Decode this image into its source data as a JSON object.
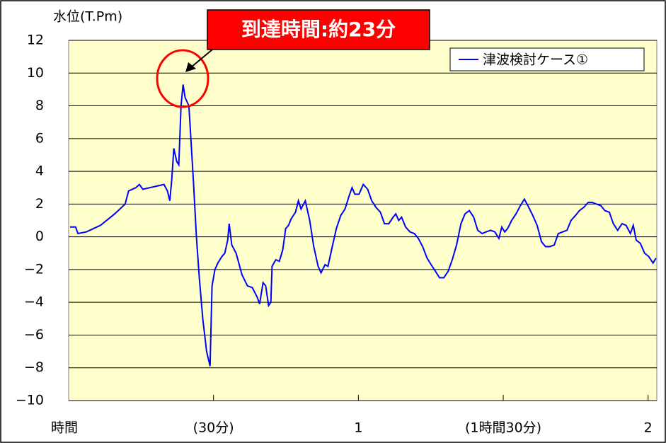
{
  "chart_data": {
    "type": "line",
    "ylabel": "水位(T.Pm)",
    "xlabel": "時間",
    "annotation": "到達時間:約23分",
    "legend": "upper right",
    "grid": true,
    "xlim": [
      0,
      2.03
    ],
    "ylim": [
      -10,
      12
    ],
    "xticks": [
      {
        "value": 0.5,
        "label": "(30分)"
      },
      1,
      {
        "value": 1.5,
        "label": "(1時間30分)"
      },
      2
    ],
    "yticks": [
      {
        "value": -10,
        "label": "−10"
      },
      {
        "value": -8,
        "label": "−8"
      },
      {
        "value": -6,
        "label": "−6"
      },
      {
        "value": -4,
        "label": "−4"
      },
      {
        "value": -2,
        "label": "−2"
      },
      0,
      2,
      4,
      6,
      8,
      10,
      12
    ],
    "x": [
      0.005,
      0.024,
      0.032,
      0.061,
      0.11,
      0.159,
      0.195,
      0.207,
      0.232,
      0.244,
      0.256,
      0.28,
      0.305,
      0.329,
      0.341,
      0.349,
      0.356,
      0.363,
      0.373,
      0.38,
      0.388,
      0.395,
      0.402,
      0.415,
      0.422,
      0.432,
      0.441,
      0.451,
      0.463,
      0.476,
      0.488,
      0.495,
      0.505,
      0.515,
      0.529,
      0.539,
      0.549,
      0.554,
      0.563,
      0.578,
      0.598,
      0.617,
      0.634,
      0.651,
      0.659,
      0.671,
      0.68,
      0.69,
      0.698,
      0.702,
      0.715,
      0.727,
      0.739,
      0.749,
      0.759,
      0.768,
      0.783,
      0.793,
      0.802,
      0.817,
      0.832,
      0.846,
      0.861,
      0.871,
      0.885,
      0.895,
      0.91,
      0.924,
      0.939,
      0.954,
      0.968,
      0.978,
      0.988,
      1.002,
      1.017,
      1.032,
      1.046,
      1.061,
      1.076,
      1.09,
      1.105,
      1.12,
      1.129,
      1.139,
      1.149,
      1.163,
      1.178,
      1.193,
      1.207,
      1.222,
      1.237,
      1.251,
      1.266,
      1.28,
      1.295,
      1.31,
      1.324,
      1.339,
      1.354,
      1.368,
      1.383,
      1.398,
      1.412,
      1.427,
      1.441,
      1.456,
      1.471,
      1.485,
      1.495,
      1.505,
      1.515,
      1.529,
      1.544,
      1.559,
      1.573,
      1.588,
      1.602,
      1.617,
      1.632,
      1.646,
      1.661,
      1.676,
      1.69,
      1.705,
      1.72,
      1.734,
      1.749,
      1.763,
      1.778,
      1.793,
      1.807,
      1.822,
      1.837,
      1.851,
      1.866,
      1.88,
      1.895,
      1.91,
      1.924,
      1.939,
      1.949,
      1.959,
      1.973,
      1.988,
      2.002,
      2.017,
      2.027
    ],
    "series": [
      {
        "name": "津波検討ケース①",
        "color": "#0000ff",
        "values": [
          0.6,
          0.6,
          0.2,
          0.3,
          0.7,
          1.4,
          2.0,
          2.8,
          3.0,
          3.2,
          2.9,
          3.0,
          3.1,
          3.2,
          2.8,
          2.2,
          3.5,
          5.4,
          4.6,
          4.4,
          8.0,
          9.3,
          8.5,
          8.0,
          6.0,
          3.0,
          0,
          -2.5,
          -5,
          -7,
          -7.9,
          -3,
          -2,
          -1.6,
          -1.2,
          -1.0,
          -0.2,
          0.8,
          -0.5,
          -1.0,
          -2.3,
          -3.0,
          -3.1,
          -3.7,
          -4.1,
          -2.8,
          -3.0,
          -4.2,
          -4.0,
          -1.8,
          -1.4,
          -1.5,
          -0.8,
          0.5,
          0.7,
          1.1,
          1.5,
          2.2,
          1.7,
          2.2,
          1.0,
          -0.6,
          -1.8,
          -2.2,
          -1.7,
          -1.8,
          -0.6,
          0.5,
          1.3,
          1.7,
          2.5,
          3.0,
          2.6,
          2.6,
          3.2,
          2.9,
          2.2,
          1.8,
          1.5,
          0.8,
          0.8,
          1.2,
          1.4,
          1.0,
          1.2,
          0.6,
          0.3,
          0.2,
          -0.1,
          -0.6,
          -1.3,
          -1.7,
          -2.1,
          -2.5,
          -2.5,
          -2.1,
          -1.4,
          -0.5,
          0.8,
          1.4,
          1.6,
          1.2,
          0.4,
          0.2,
          0.3,
          0.4,
          0.3,
          -0.1,
          0.6,
          0.3,
          0.5,
          1.0,
          1.4,
          1.9,
          2.3,
          1.8,
          1.3,
          0.7,
          -0.3,
          -0.6,
          -0.6,
          -0.5,
          0.2,
          0.3,
          0.4,
          1.0,
          1.3,
          1.6,
          1.8,
          2.1,
          2.1,
          2.0,
          1.9,
          1.6,
          1.5,
          0.8,
          0.4,
          0.8,
          0.7,
          0.2,
          0.7,
          -0.2,
          -0.4,
          -1.0,
          -1.2,
          -1.6,
          -1.3
        ]
      }
    ]
  }
}
